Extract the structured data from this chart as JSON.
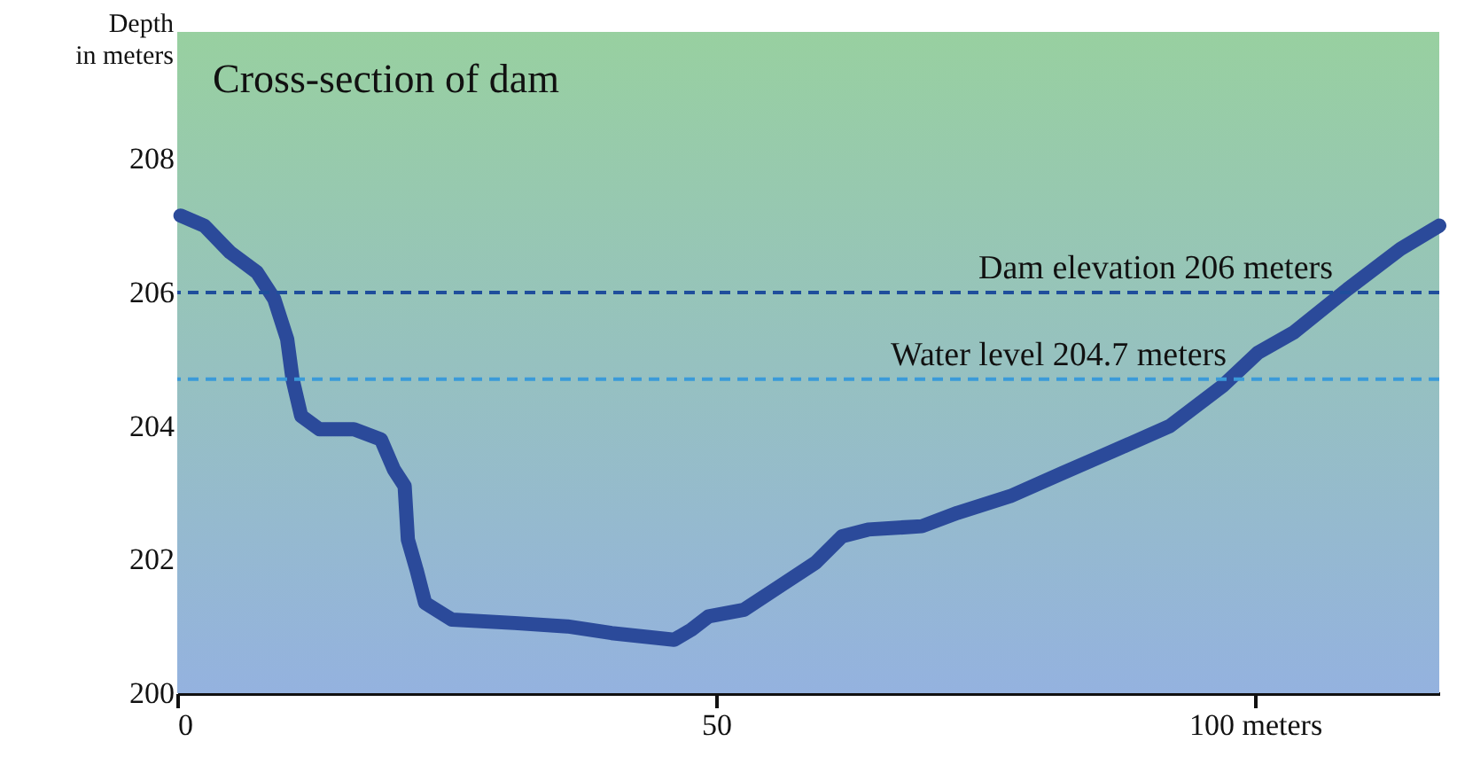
{
  "chart_data": {
    "type": "line",
    "title": "Cross-section of dam",
    "ylabel": "Depth\nin meters",
    "xlim": [
      0,
      117.1
    ],
    "xticks": [
      0,
      50,
      {
        "value": 100,
        "label": "100 meters"
      }
    ],
    "ylim": [
      200,
      209.9
    ],
    "yticks": [
      200,
      202,
      204,
      206,
      208
    ],
    "grid": false,
    "line_style": "solid",
    "x": [
      0.3,
      2.5,
      4.9,
      7.4,
      9.0,
      10.2,
      10.7,
      11.5,
      13.2,
      16.4,
      18.9,
      20.1,
      21.1,
      21.4,
      22.2,
      23.0,
      25.5,
      31.3,
      36.2,
      40.3,
      46.1,
      47.7,
      49.3,
      52.6,
      55.9,
      59.2,
      61.7,
      64.1,
      69.1,
      72.4,
      77.3,
      82.2,
      87.2,
      92.1,
      97.0,
      100.3,
      103.6,
      108.6,
      113.5,
      117.1
    ],
    "series": [
      {
        "color": "#2b4a9a",
        "values": [
          207.15,
          207.0,
          206.6,
          206.3,
          205.9,
          205.3,
          204.7,
          204.15,
          203.95,
          203.95,
          203.8,
          203.35,
          203.1,
          202.3,
          201.85,
          201.35,
          201.1,
          201.05,
          201.0,
          200.9,
          200.8,
          200.95,
          201.15,
          201.25,
          201.6,
          201.95,
          202.35,
          202.45,
          202.5,
          202.7,
          202.95,
          203.3,
          203.65,
          204.0,
          204.6,
          205.1,
          205.4,
          206.05,
          206.65,
          207.0
        ]
      }
    ],
    "ref_lines": [
      {
        "axis": "y",
        "value": 206,
        "label": "Dam elevation 206 meters",
        "color": "#1f4e9c",
        "line_style": "dashed"
      },
      {
        "axis": "y",
        "value": 204.7,
        "label": "Water level 204.7 meters",
        "color": "#3a9ad9",
        "line_style": "dashed"
      }
    ]
  }
}
